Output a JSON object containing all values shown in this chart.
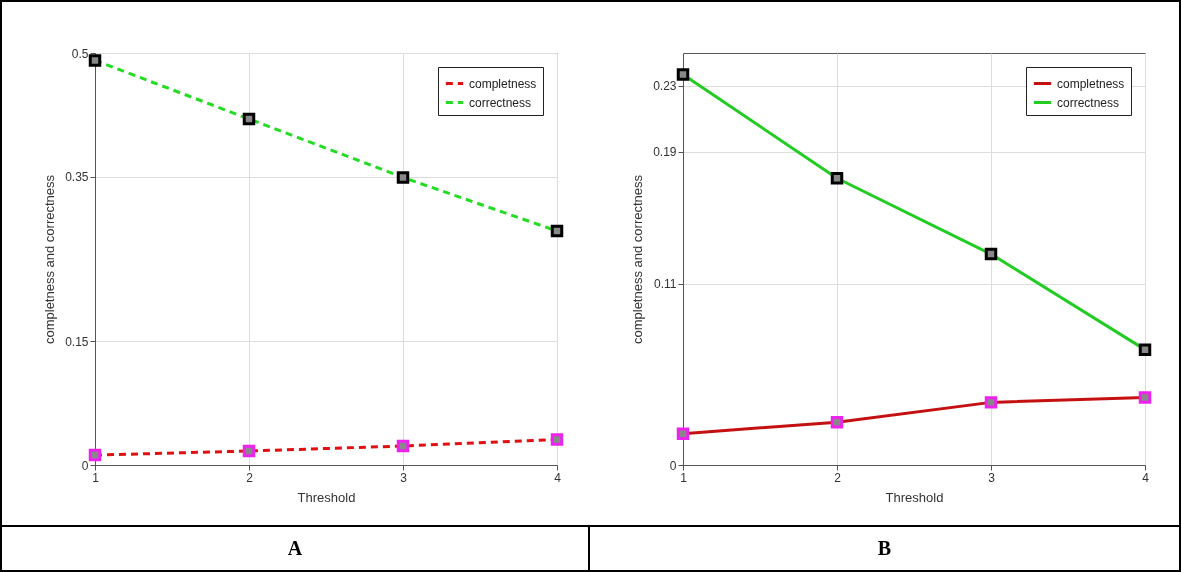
{
  "chart_data": [
    {
      "type": "line",
      "xlabel": "Threshold",
      "ylabel": "completness and correctness",
      "annotations": [
        "A"
      ],
      "x": [
        1,
        2,
        3,
        4
      ],
      "xlim": [
        1,
        4
      ],
      "xticks": [
        1,
        2,
        3,
        4
      ],
      "ylim": [
        0,
        0.5
      ],
      "yticks": [
        0,
        0.15,
        0.35,
        0.5
      ],
      "grid": true,
      "legend": "top right",
      "marker": "square",
      "line_style": "dashed",
      "series": [
        {
          "name": "completness",
          "color": "#e01010",
          "values": [
            0.012,
            0.017,
            0.023,
            0.031
          ]
        },
        {
          "name": "correctness",
          "color": "#22dd22",
          "values": [
            0.491,
            0.42,
            0.349,
            0.284
          ]
        }
      ]
    },
    {
      "type": "line",
      "xlabel": "Threshold",
      "ylabel": "completness and correctness",
      "annotations": [
        "B"
      ],
      "x": [
        1,
        2,
        3,
        4
      ],
      "xlim": [
        1,
        4
      ],
      "xticks": [
        1,
        2,
        3,
        4
      ],
      "ylim": [
        0,
        0.25
      ],
      "yticks": [
        0,
        0.11,
        0.19,
        0.23
      ],
      "grid": true,
      "legend": "top right",
      "marker": "square",
      "line_style": "solid",
      "series": [
        {
          "name": "completness",
          "color": "#c41010",
          "values": [
            0.019,
            0.026,
            0.038,
            0.041
          ]
        },
        {
          "name": "correctness",
          "color": "#22cc22",
          "values": [
            0.237,
            0.174,
            0.128,
            0.07
          ]
        }
      ]
    }
  ]
}
